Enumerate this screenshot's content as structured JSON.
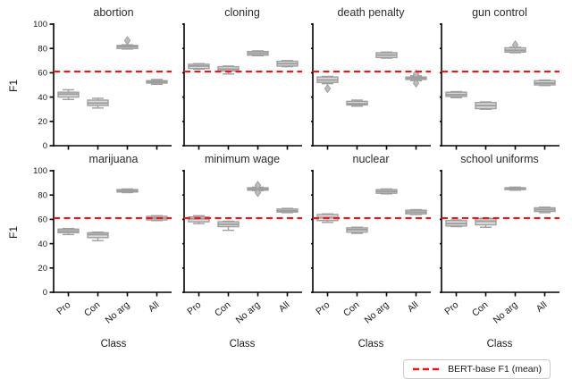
{
  "figure": {
    "background": "#ffffff"
  },
  "legend": {
    "label": "BERT-base F1 (mean)",
    "line_color": "#ff1111",
    "line_style": "dashed"
  },
  "chart_data": {
    "type": "boxplot",
    "grid": {
      "rows": 2,
      "cols": 4
    },
    "categories": [
      "Pro",
      "Con",
      "No arg",
      "All"
    ],
    "xlabel": "Class",
    "ylabel": "F1",
    "ylim": [
      0,
      100
    ],
    "yticks": [
      0,
      20,
      40,
      60,
      80,
      100
    ],
    "box_style": {
      "fill": "#dcdcdc",
      "stroke": "#9e9e9e",
      "flier_fill": "#bdbdbd"
    },
    "reference_line": {
      "value": 61,
      "color": "#ff1111",
      "style": "dashed",
      "label": "BERT-base F1 (mean)"
    },
    "subplots": [
      {
        "title": "abortion",
        "boxes": [
          {
            "whislo": 38,
            "q1": 40,
            "med": 42.5,
            "q3": 44,
            "whishi": 46,
            "outliers": []
          },
          {
            "whislo": 31,
            "q1": 33,
            "med": 35,
            "q3": 37.5,
            "whishi": 39,
            "outliers": []
          },
          {
            "whislo": 79.5,
            "q1": 80,
            "med": 81.5,
            "q3": 82.5,
            "whishi": 83,
            "outliers": [
              86.5
            ]
          },
          {
            "whislo": 50.5,
            "q1": 51.5,
            "med": 52.5,
            "q3": 53.5,
            "whishi": 54.5,
            "outliers": []
          }
        ]
      },
      {
        "title": "cloning",
        "boxes": [
          {
            "whislo": 63,
            "q1": 63.5,
            "med": 65.5,
            "q3": 67,
            "whishi": 67.5,
            "outliers": []
          },
          {
            "whislo": 59,
            "q1": 61.5,
            "med": 63,
            "q3": 65,
            "whishi": 65.5,
            "outliers": []
          },
          {
            "whislo": 74,
            "q1": 74.5,
            "med": 76,
            "q3": 77.5,
            "whishi": 78,
            "outliers": []
          },
          {
            "whislo": 65,
            "q1": 65.5,
            "med": 67.5,
            "q3": 69.5,
            "whishi": 70,
            "outliers": []
          }
        ]
      },
      {
        "title": "death penalty",
        "boxes": [
          {
            "whislo": 51,
            "q1": 52,
            "med": 54,
            "q3": 56.5,
            "whishi": 57,
            "outliers": [
              47
            ]
          },
          {
            "whislo": 32.5,
            "q1": 33.5,
            "med": 34.5,
            "q3": 36.5,
            "whishi": 37.5,
            "outliers": []
          },
          {
            "whislo": 72,
            "q1": 72.5,
            "med": 74.5,
            "q3": 76.5,
            "whishi": 77,
            "outliers": []
          },
          {
            "whislo": 53.5,
            "q1": 54.5,
            "med": 55.5,
            "q3": 56.5,
            "whishi": 57.5,
            "outliers": [
              51.5,
              59
            ]
          }
        ]
      },
      {
        "title": "gun control",
        "boxes": [
          {
            "whislo": 39.5,
            "q1": 40.5,
            "med": 42,
            "q3": 44,
            "whishi": 44.5,
            "outliers": []
          },
          {
            "whislo": 30,
            "q1": 30.5,
            "med": 33,
            "q3": 35.5,
            "whishi": 36,
            "outliers": []
          },
          {
            "whislo": 76.5,
            "q1": 77,
            "med": 78.5,
            "q3": 80.5,
            "whishi": 81,
            "outliers": [
              83
            ]
          },
          {
            "whislo": 49.5,
            "q1": 50,
            "med": 51.5,
            "q3": 53.5,
            "whishi": 54,
            "outliers": []
          }
        ]
      },
      {
        "title": "marijuana",
        "boxes": [
          {
            "whislo": 47.5,
            "q1": 49,
            "med": 50.5,
            "q3": 52,
            "whishi": 52.5,
            "outliers": []
          },
          {
            "whislo": 42.5,
            "q1": 45,
            "med": 47.5,
            "q3": 49,
            "whishi": 49.5,
            "outliers": []
          },
          {
            "whislo": 82,
            "q1": 82.5,
            "med": 83.5,
            "q3": 84.5,
            "whishi": 85,
            "outliers": []
          },
          {
            "whislo": 59,
            "q1": 59.5,
            "med": 61,
            "q3": 62.5,
            "whishi": 63,
            "outliers": []
          }
        ]
      },
      {
        "title": "minimum wage",
        "boxes": [
          {
            "whislo": 56.5,
            "q1": 58,
            "med": 60.5,
            "q3": 62,
            "whishi": 63,
            "outliers": []
          },
          {
            "whislo": 51,
            "q1": 54,
            "med": 56,
            "q3": 58,
            "whishi": 58.5,
            "outliers": []
          },
          {
            "whislo": 83.5,
            "q1": 84,
            "med": 85,
            "q3": 86,
            "whishi": 86.5,
            "outliers": [
              82,
              88
            ]
          },
          {
            "whislo": 65.5,
            "q1": 66,
            "med": 67,
            "q3": 68.5,
            "whishi": 69,
            "outliers": []
          }
        ]
      },
      {
        "title": "nuclear",
        "boxes": [
          {
            "whislo": 57.5,
            "q1": 59,
            "med": 61.5,
            "q3": 64,
            "whishi": 64.5,
            "outliers": []
          },
          {
            "whislo": 48.5,
            "q1": 49.5,
            "med": 51.5,
            "q3": 53,
            "whishi": 53.5,
            "outliers": []
          },
          {
            "whislo": 81,
            "q1": 81.5,
            "med": 83,
            "q3": 84.5,
            "whishi": 85,
            "outliers": []
          },
          {
            "whislo": 64,
            "q1": 64.5,
            "med": 66,
            "q3": 67.5,
            "whishi": 68,
            "outliers": []
          }
        ]
      },
      {
        "title": "school uniforms",
        "boxes": [
          {
            "whislo": 54,
            "q1": 54.5,
            "med": 56.5,
            "q3": 59,
            "whishi": 59.5,
            "outliers": []
          },
          {
            "whislo": 53.5,
            "q1": 55.5,
            "med": 58.5,
            "q3": 60.5,
            "whishi": 61,
            "outliers": []
          },
          {
            "whislo": 84,
            "q1": 84.5,
            "med": 85,
            "q3": 86,
            "whishi": 86.5,
            "outliers": []
          },
          {
            "whislo": 65.5,
            "q1": 66.5,
            "med": 68,
            "q3": 69.5,
            "whishi": 70,
            "outliers": []
          }
        ]
      }
    ]
  }
}
